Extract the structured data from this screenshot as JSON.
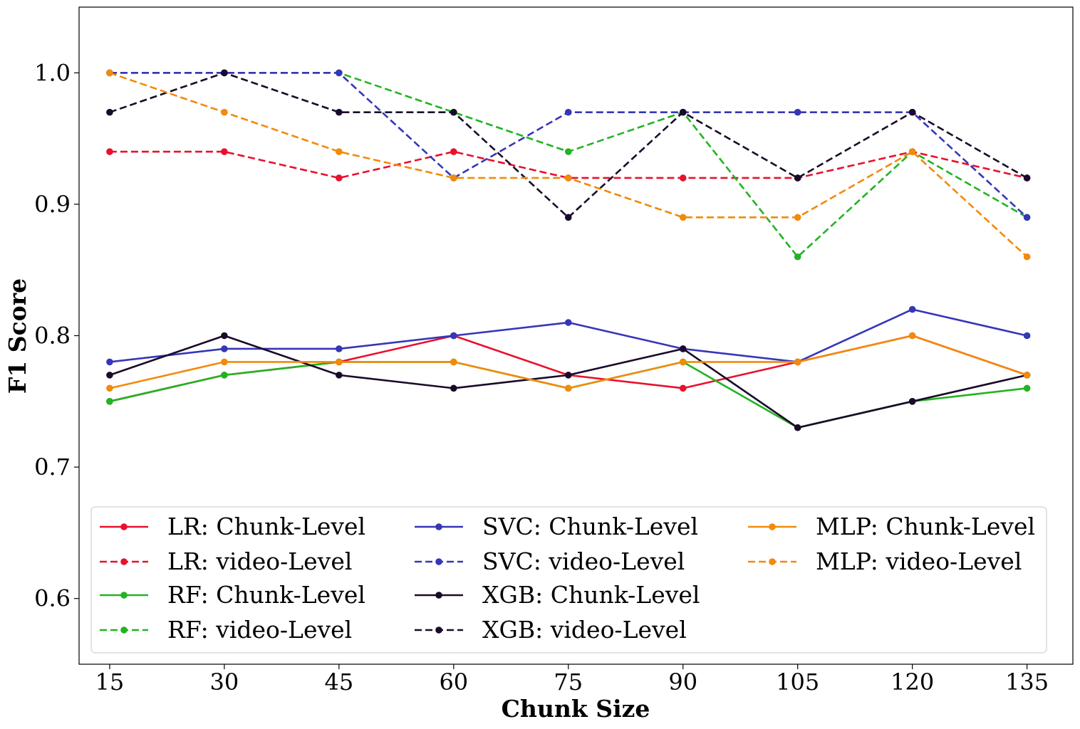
{
  "chart_data": {
    "type": "line",
    "title": "",
    "xlabel": "Chunk Size",
    "ylabel": "F1 Score",
    "x": [
      15,
      30,
      45,
      60,
      75,
      90,
      105,
      120,
      135
    ],
    "xticks": [
      "15",
      "30",
      "45",
      "60",
      "75",
      "90",
      "105",
      "120",
      "135"
    ],
    "yticks": [
      "0.6",
      "0.7",
      "0.8",
      "0.9",
      "1.0"
    ],
    "ytick_values": [
      0.6,
      0.7,
      0.8,
      0.9,
      1.0
    ],
    "ylim": [
      0.55,
      1.05
    ],
    "xlim": [
      11,
      141
    ],
    "grid": false,
    "legend_position": "lower-left",
    "legend_columns": 3,
    "series": [
      {
        "name": "LR: Chunk-Level",
        "model": "LR",
        "style": "solid",
        "color": "#e8112d",
        "values": [
          0.75,
          0.77,
          0.78,
          0.8,
          0.77,
          0.76,
          0.78,
          0.8,
          0.77
        ]
      },
      {
        "name": "LR: video-Level",
        "model": "LR",
        "style": "dashed",
        "color": "#e8112d",
        "values": [
          0.94,
          0.94,
          0.92,
          0.94,
          0.92,
          0.92,
          0.92,
          0.94,
          0.92
        ]
      },
      {
        "name": "RF: Chunk-Level",
        "model": "RF",
        "style": "solid",
        "color": "#22b322",
        "values": [
          0.75,
          0.77,
          0.78,
          0.78,
          0.76,
          0.78,
          0.73,
          0.75,
          0.76
        ]
      },
      {
        "name": "RF: video-Level",
        "model": "RF",
        "style": "dashed",
        "color": "#22b322",
        "values": [
          1.0,
          1.0,
          1.0,
          0.97,
          0.94,
          0.97,
          0.86,
          0.94,
          0.89
        ]
      },
      {
        "name": "SVC: Chunk-Level",
        "model": "SVC",
        "style": "solid",
        "color": "#3636b8",
        "values": [
          0.78,
          0.79,
          0.79,
          0.8,
          0.81,
          0.79,
          0.78,
          0.82,
          0.8
        ]
      },
      {
        "name": "SVC: video-Level",
        "model": "SVC",
        "style": "dashed",
        "color": "#3636b8",
        "values": [
          1.0,
          1.0,
          1.0,
          0.92,
          0.97,
          0.97,
          0.97,
          0.97,
          0.89
        ]
      },
      {
        "name": "XGB: Chunk-Level",
        "model": "XGB",
        "style": "solid",
        "color": "#1a0a2a",
        "values": [
          0.77,
          0.8,
          0.77,
          0.76,
          0.77,
          0.79,
          0.73,
          0.75,
          0.77
        ]
      },
      {
        "name": "XGB: video-Level",
        "model": "XGB",
        "style": "dashed",
        "color": "#1a0a2a",
        "values": [
          0.97,
          1.0,
          0.97,
          0.97,
          0.89,
          0.97,
          0.92,
          0.97,
          0.92
        ]
      },
      {
        "name": "MLP: Chunk-Level",
        "model": "MLP",
        "style": "solid",
        "color": "#f28a0a",
        "values": [
          0.76,
          0.78,
          0.78,
          0.78,
          0.76,
          0.78,
          0.78,
          0.8,
          0.77
        ]
      },
      {
        "name": "MLP: video-Level",
        "model": "MLP",
        "style": "dashed",
        "color": "#f28a0a",
        "values": [
          1.0,
          0.97,
          0.94,
          0.92,
          0.92,
          0.89,
          0.89,
          0.94,
          0.86
        ]
      }
    ]
  }
}
